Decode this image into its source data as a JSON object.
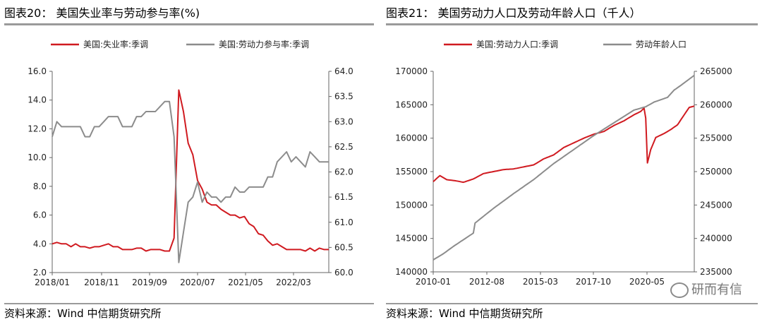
{
  "panels": [
    {
      "title": "图表20： 美国失业率与劳动参与率(%)",
      "source": "资料来源：Wind  中信期货研究所"
    },
    {
      "title": "图表21： 美国劳动力人口及劳动年龄人口（千人）",
      "source": "资料来源：Wind  中信期货研究所"
    }
  ],
  "watermark": "研而有信",
  "colors": {
    "red": "#d01a20",
    "gray": "#8c8c8c",
    "axis": "#666666"
  },
  "chart_data": [
    {
      "type": "line",
      "title": "美国失业率与劳动参与率(%)",
      "xlabels": [
        "2018/01",
        "2018/11",
        "2019/09",
        "2020/07",
        "2021/05",
        "2022/03"
      ],
      "x_start": "2018-01",
      "months": 60,
      "y_left": {
        "min": 2.0,
        "max": 16.0,
        "ticks": [
          "2.0",
          "4.0",
          "6.0",
          "8.0",
          "10.0",
          "12.0",
          "14.0",
          "16.0"
        ]
      },
      "y_right": {
        "min": 60.0,
        "max": 64.0,
        "ticks": [
          "60.0",
          "60.5",
          "61.0",
          "61.5",
          "62.0",
          "62.5",
          "63.0",
          "63.5",
          "64.0"
        ]
      },
      "series": [
        {
          "name": "美国:失业率:季调",
          "axis": "left",
          "color": "#d01a20",
          "values": [
            4.0,
            4.1,
            4.0,
            4.0,
            3.8,
            4.0,
            3.8,
            3.8,
            3.7,
            3.8,
            3.8,
            3.9,
            4.0,
            3.8,
            3.8,
            3.6,
            3.6,
            3.6,
            3.7,
            3.7,
            3.5,
            3.6,
            3.6,
            3.6,
            3.5,
            3.5,
            4.4,
            14.7,
            13.2,
            11.0,
            10.2,
            8.4,
            7.8,
            6.9,
            6.7,
            6.7,
            6.4,
            6.2,
            6.0,
            6.0,
            5.8,
            5.9,
            5.4,
            5.2,
            4.7,
            4.6,
            4.2,
            3.9,
            4.0,
            3.8,
            3.6,
            3.6,
            3.6,
            3.6,
            3.5,
            3.7,
            3.5,
            3.7,
            3.6,
            3.6
          ]
        },
        {
          "name": "美国:劳动力参与率:季调",
          "axis": "right",
          "color": "#8c8c8c",
          "values": [
            62.7,
            63.0,
            62.9,
            62.9,
            62.9,
            62.9,
            62.9,
            62.7,
            62.7,
            62.9,
            62.9,
            63.0,
            63.1,
            63.1,
            63.1,
            62.9,
            62.9,
            62.9,
            63.1,
            63.1,
            63.2,
            63.2,
            63.2,
            63.3,
            63.4,
            63.4,
            62.7,
            60.2,
            60.8,
            61.4,
            61.5,
            61.8,
            61.4,
            61.6,
            61.5,
            61.5,
            61.4,
            61.5,
            61.5,
            61.7,
            61.6,
            61.6,
            61.7,
            61.7,
            61.7,
            61.7,
            61.9,
            61.9,
            62.2,
            62.3,
            62.4,
            62.2,
            62.3,
            62.2,
            62.1,
            62.4,
            62.3,
            62.2,
            62.2,
            62.2
          ]
        }
      ]
    },
    {
      "type": "line",
      "title": "美国劳动力人口及劳动年龄人口（千人）",
      "xlabels": [
        "2010-01",
        "2012-08",
        "2015-03",
        "2017-10",
        "2020-05"
      ],
      "x_start": "2010-01",
      "months": 156,
      "y_left": {
        "min": 140000,
        "max": 170000,
        "ticks": [
          "140000",
          "145000",
          "150000",
          "155000",
          "160000",
          "165000",
          "170000"
        ]
      },
      "y_right": {
        "min": 235000,
        "max": 265000,
        "ticks": [
          "235000",
          "240000",
          "245000",
          "250000",
          "255000",
          "260000",
          "265000"
        ]
      },
      "series": [
        {
          "name": "美国:劳动力人口:季调",
          "axis": "left",
          "color": "#d01a20",
          "anchors": [
            [
              0,
              153500
            ],
            [
              4,
              154400
            ],
            [
              8,
              153800
            ],
            [
              14,
              153600
            ],
            [
              18,
              153400
            ],
            [
              24,
              153900
            ],
            [
              30,
              154700
            ],
            [
              36,
              155000
            ],
            [
              42,
              155300
            ],
            [
              48,
              155400
            ],
            [
              54,
              155700
            ],
            [
              60,
              156000
            ],
            [
              66,
              156900
            ],
            [
              72,
              157500
            ],
            [
              78,
              158600
            ],
            [
              84,
              159300
            ],
            [
              90,
              160000
            ],
            [
              96,
              160600
            ],
            [
              102,
              161000
            ],
            [
              108,
              161900
            ],
            [
              114,
              162600
            ],
            [
              120,
              163500
            ],
            [
              124,
              164000
            ],
            [
              126,
              164500
            ],
            [
              127,
              163000
            ],
            [
              128,
              156300
            ],
            [
              130,
              158300
            ],
            [
              133,
              160100
            ],
            [
              138,
              160700
            ],
            [
              142,
              161300
            ],
            [
              146,
              162000
            ],
            [
              150,
              163500
            ],
            [
              153,
              164600
            ],
            [
              156,
              164800
            ]
          ]
        },
        {
          "name": "劳动年龄人口",
          "axis": "right",
          "color": "#8c8c8c",
          "anchors": [
            [
              0,
              236800
            ],
            [
              6,
              237700
            ],
            [
              12,
              238800
            ],
            [
              18,
              239800
            ],
            [
              24,
              240800
            ],
            [
              25,
              242300
            ],
            [
              36,
              244500
            ],
            [
              48,
              246700
            ],
            [
              60,
              248800
            ],
            [
              72,
              251200
            ],
            [
              84,
              253300
            ],
            [
              96,
              255400
            ],
            [
              108,
              257300
            ],
            [
              120,
              259200
            ],
            [
              127,
              259700
            ],
            [
              132,
              260400
            ],
            [
              140,
              261100
            ],
            [
              144,
              262200
            ],
            [
              148,
              262900
            ],
            [
              156,
              264400
            ]
          ]
        }
      ]
    }
  ]
}
